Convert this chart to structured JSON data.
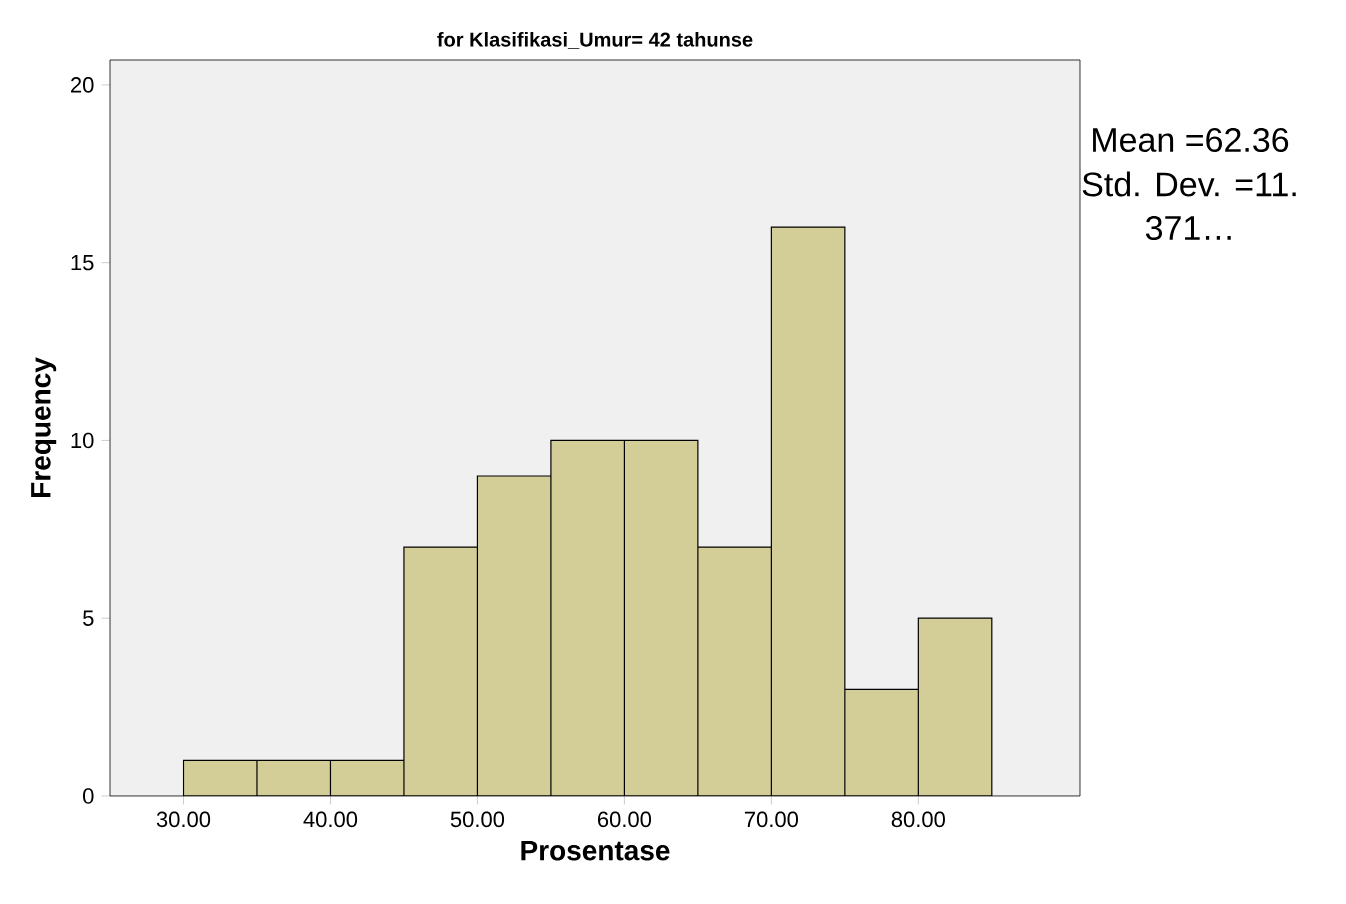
{
  "chart_data": {
    "type": "histogram",
    "title": "for Klasifikasi_Umur= 42 tahunse",
    "xlabel": "Prosentase",
    "ylabel": "Frequency",
    "bins": [
      30,
      35,
      40,
      45,
      50,
      55,
      60,
      65,
      70,
      75,
      80,
      85
    ],
    "values": [
      1,
      1,
      1,
      7,
      9,
      10,
      10,
      7,
      16,
      3,
      5
    ],
    "color": "#d3ce97",
    "xlim": [
      25,
      91
    ],
    "ylim": [
      0,
      20.7
    ],
    "xticks": [
      {
        "value": 30,
        "label": "30.00"
      },
      {
        "value": 40,
        "label": "40.00"
      },
      {
        "value": 50,
        "label": "50.00"
      },
      {
        "value": 60,
        "label": "60.00"
      },
      {
        "value": 70,
        "label": "70.00"
      },
      {
        "value": 80,
        "label": "80.00"
      }
    ],
    "yticks": [
      0,
      5,
      10,
      15,
      20
    ],
    "annotations": [
      "Mean =62.36",
      "Std. Dev. =11.",
      "371…"
    ]
  }
}
